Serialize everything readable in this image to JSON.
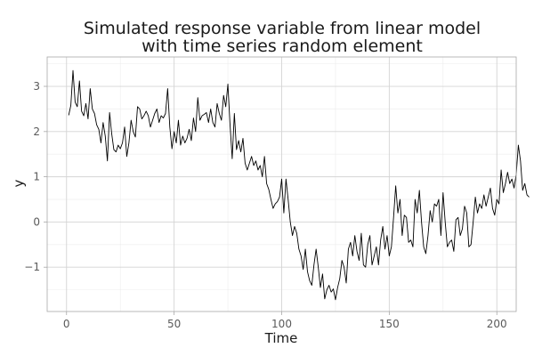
{
  "chart_data": {
    "type": "line",
    "title": [
      "Simulated response variable from linear model",
      "with time series random element"
    ],
    "xlabel": "Time",
    "ylabel": "y",
    "xlim": [
      -9,
      209
    ],
    "ylim": [
      -1.98,
      3.65
    ],
    "x_ticks": [
      0,
      50,
      100,
      150,
      200
    ],
    "x_tick_labels": [
      "0",
      "50",
      "100",
      "150",
      "200"
    ],
    "x_minor_ticks": [
      25,
      75,
      125,
      175
    ],
    "y_ticks": [
      -1,
      0,
      1,
      2,
      3
    ],
    "y_tick_labels": [
      "−1",
      "0",
      "1",
      "2",
      "3"
    ],
    "y_minor_ticks": [
      -1.5,
      -0.5,
      0.5,
      1.5,
      2.5,
      3.5
    ],
    "grid": true,
    "legend": "none",
    "series": [
      {
        "color": "#000000",
        "x_start": 1,
        "x_step": 1,
        "values": [
          2.36,
          2.58,
          3.35,
          2.65,
          2.55,
          3.12,
          2.45,
          2.35,
          2.62,
          2.28,
          2.95,
          2.5,
          2.4,
          2.15,
          2.05,
          1.75,
          2.2,
          1.9,
          1.35,
          2.42,
          1.95,
          1.6,
          1.55,
          1.7,
          1.62,
          1.75,
          2.1,
          1.45,
          1.75,
          2.25,
          2.0,
          1.88,
          2.55,
          2.5,
          2.28,
          2.35,
          2.45,
          2.35,
          2.1,
          2.25,
          2.4,
          2.5,
          2.2,
          2.35,
          2.3,
          2.4,
          2.95,
          2.1,
          1.62,
          2.0,
          1.75,
          2.25,
          1.7,
          1.9,
          1.75,
          1.85,
          2.05,
          1.8,
          2.3,
          2.0,
          2.75,
          2.25,
          2.35,
          2.38,
          2.42,
          2.2,
          2.5,
          2.2,
          2.1,
          2.62,
          2.4,
          2.25,
          2.8,
          2.55,
          3.05,
          2.15,
          1.4,
          2.4,
          1.6,
          1.8,
          1.55,
          1.85,
          1.3,
          1.15,
          1.3,
          1.45,
          1.25,
          1.35,
          1.15,
          1.25,
          1.0,
          1.45,
          0.85,
          0.72,
          0.5,
          0.3,
          0.4,
          0.45,
          0.55,
          0.95,
          0.2,
          0.95,
          0.5,
          0.0,
          -0.3,
          -0.1,
          -0.25,
          -0.6,
          -0.75,
          -1.05,
          -0.6,
          -1.1,
          -1.3,
          -1.4,
          -0.95,
          -0.6,
          -1.0,
          -1.45,
          -1.15,
          -1.7,
          -1.5,
          -1.4,
          -1.55,
          -1.48,
          -1.72,
          -1.45,
          -1.25,
          -0.85,
          -1.0,
          -1.35,
          -0.6,
          -0.45,
          -0.75,
          -0.3,
          -0.65,
          -0.85,
          -0.25,
          -0.95,
          -1.0,
          -0.5,
          -0.3,
          -0.95,
          -0.75,
          -0.55,
          -0.95,
          -0.4,
          -0.1,
          -0.6,
          -0.3,
          -0.75,
          -0.55,
          0.1,
          0.8,
          0.2,
          0.5,
          -0.3,
          0.15,
          0.1,
          -0.45,
          -0.4,
          -0.55,
          0.5,
          0.2,
          0.7,
          0.0,
          -0.55,
          -0.7,
          -0.3,
          0.25,
          0.0,
          0.4,
          0.35,
          0.5,
          -0.3,
          0.65,
          0.0,
          -0.55,
          -0.45,
          -0.4,
          -0.65,
          0.05,
          0.1,
          -0.3,
          -0.15,
          0.35,
          0.2,
          -0.55,
          -0.5,
          0.0,
          0.55,
          0.2,
          0.4,
          0.3,
          0.6,
          0.35,
          0.55,
          0.75,
          0.3,
          0.15,
          0.5,
          0.4,
          1.15,
          0.65,
          0.85,
          1.1,
          0.85,
          0.95,
          0.75,
          1.05,
          1.7,
          1.35,
          0.7,
          0.85,
          0.6,
          0.55
        ]
      }
    ]
  }
}
